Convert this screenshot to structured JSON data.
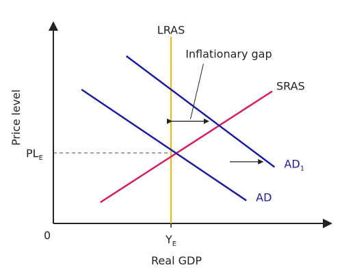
{
  "chart_data": {
    "type": "line",
    "title": "",
    "xlabel": "Real GDP",
    "ylabel": "Price level",
    "origin_label": "0",
    "equilibrium": {
      "x_label": "Y",
      "x_label_sub": "E",
      "y_label": "PL",
      "y_label_sub": "E",
      "x": 5,
      "y": 4
    },
    "annotation": {
      "text": "Inflationary gap",
      "from_x": 5,
      "to_x": 6.65,
      "y": 5.8
    },
    "series": [
      {
        "name": "LRAS",
        "label_main": "LRAS",
        "label_sub": "",
        "color": "#f2b705",
        "points": [
          [
            5,
            0
          ],
          [
            5,
            10.6
          ]
        ]
      },
      {
        "name": "SRAS",
        "label_main": "SRAS",
        "label_sub": "",
        "color": "#d81b60",
        "points": [
          [
            2,
            1.2
          ],
          [
            9.3,
            7.5
          ]
        ]
      },
      {
        "name": "AD",
        "label_main": "AD",
        "label_sub": "",
        "color": "#1a1aa0",
        "points": [
          [
            1.2,
            7.6
          ],
          [
            8.2,
            1.3
          ]
        ]
      },
      {
        "name": "AD1",
        "label_main": "AD",
        "label_sub": "1",
        "color": "#1a1aa0",
        "points": [
          [
            3.1,
            9.5
          ],
          [
            9.4,
            3.2
          ]
        ]
      }
    ],
    "shift_arrow": {
      "from_x": 7.5,
      "to_x": 8.9,
      "y": 3.5
    },
    "xlim": [
      0,
      11.8
    ],
    "ylim": [
      0,
      11.4
    ]
  }
}
